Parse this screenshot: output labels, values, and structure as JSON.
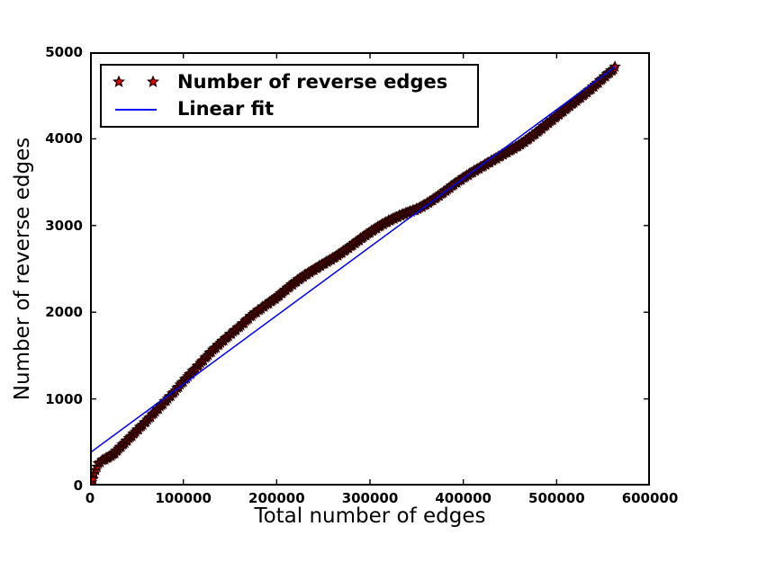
{
  "chart_data": {
    "type": "scatter",
    "title": "",
    "xlabel": "Total number of edges",
    "ylabel": "Number of reverse edges",
    "xlim": [
      0,
      600000
    ],
    "ylim": [
      0,
      5000
    ],
    "x_ticks": [
      0,
      100000,
      200000,
      300000,
      400000,
      500000,
      600000
    ],
    "y_ticks": [
      0,
      1000,
      2000,
      3000,
      4000,
      5000
    ],
    "grid": false,
    "legend": {
      "position": "upper left",
      "items": [
        {
          "label": "Number of reverse edges",
          "marker": "star",
          "color": "#ff0000",
          "edge_color": "#2b0000"
        },
        {
          "label": "Linear fit",
          "marker": "line",
          "color": "#0000ff"
        }
      ]
    },
    "series": [
      {
        "name": "Number of reverse edges",
        "type": "scatter",
        "marker": "star",
        "fill": "#ee0000",
        "edge": "#2b0000",
        "points": [
          [
            0,
            0
          ],
          [
            1500,
            25
          ],
          [
            3000,
            70
          ],
          [
            4500,
            122
          ],
          [
            6000,
            168
          ],
          [
            7500,
            208
          ],
          [
            9000,
            238
          ],
          [
            11000,
            260
          ],
          [
            13000,
            275
          ],
          [
            16000,
            292
          ],
          [
            20000,
            315
          ],
          [
            24000,
            340
          ],
          [
            28000,
            380
          ],
          [
            32000,
            428
          ],
          [
            36000,
            472
          ],
          [
            40000,
            518
          ],
          [
            45000,
            575
          ],
          [
            49000,
            626
          ],
          [
            55000,
            695
          ],
          [
            60000,
            752
          ],
          [
            65000,
            812
          ],
          [
            70000,
            872
          ],
          [
            75000,
            928
          ],
          [
            80000,
            982
          ],
          [
            85000,
            1038
          ],
          [
            90000,
            1088
          ],
          [
            95000,
            1152
          ],
          [
            100000,
            1208
          ],
          [
            105000,
            1262
          ],
          [
            110000,
            1315
          ],
          [
            115000,
            1368
          ],
          [
            120000,
            1425
          ],
          [
            125000,
            1482
          ],
          [
            130000,
            1540
          ],
          [
            135000,
            1592
          ],
          [
            140000,
            1645
          ],
          [
            145000,
            1695
          ],
          [
            150000,
            1745
          ],
          [
            155000,
            1792
          ],
          [
            160000,
            1840
          ],
          [
            165000,
            1888
          ],
          [
            170000,
            1940
          ],
          [
            175000,
            1985
          ],
          [
            180000,
            2022
          ],
          [
            185000,
            2058
          ],
          [
            190000,
            2093
          ],
          [
            200000,
            2160
          ],
          [
            210000,
            2245
          ],
          [
            220000,
            2330
          ],
          [
            230000,
            2410
          ],
          [
            240000,
            2485
          ],
          [
            250000,
            2560
          ],
          [
            260000,
            2630
          ],
          [
            270000,
            2705
          ],
          [
            280000,
            2780
          ],
          [
            290000,
            2855
          ],
          [
            300000,
            2925
          ],
          [
            310000,
            2990
          ],
          [
            320000,
            3050
          ],
          [
            330000,
            3105
          ],
          [
            340000,
            3155
          ],
          [
            350000,
            3200
          ],
          [
            360000,
            3262
          ],
          [
            370000,
            3330
          ],
          [
            380000,
            3400
          ],
          [
            390000,
            3472
          ],
          [
            398000,
            3525
          ],
          [
            410000,
            3600
          ],
          [
            420000,
            3662
          ],
          [
            430000,
            3730
          ],
          [
            440000,
            3800
          ],
          [
            450000,
            3868
          ],
          [
            460000,
            3935
          ],
          [
            470000,
            4010
          ],
          [
            480000,
            4090
          ],
          [
            490000,
            4172
          ],
          [
            500000,
            4255
          ],
          [
            510000,
            4340
          ],
          [
            520000,
            4428
          ],
          [
            530000,
            4520
          ],
          [
            540000,
            4618
          ],
          [
            548000,
            4700
          ],
          [
            554000,
            4762
          ],
          [
            558000,
            4800
          ],
          [
            561000,
            4822
          ],
          [
            562500,
            4832
          ]
        ]
      },
      {
        "name": "Linear fit",
        "type": "line",
        "color": "#0000ff",
        "points": [
          [
            0,
            378
          ],
          [
            562500,
            4832
          ]
        ]
      }
    ]
  }
}
